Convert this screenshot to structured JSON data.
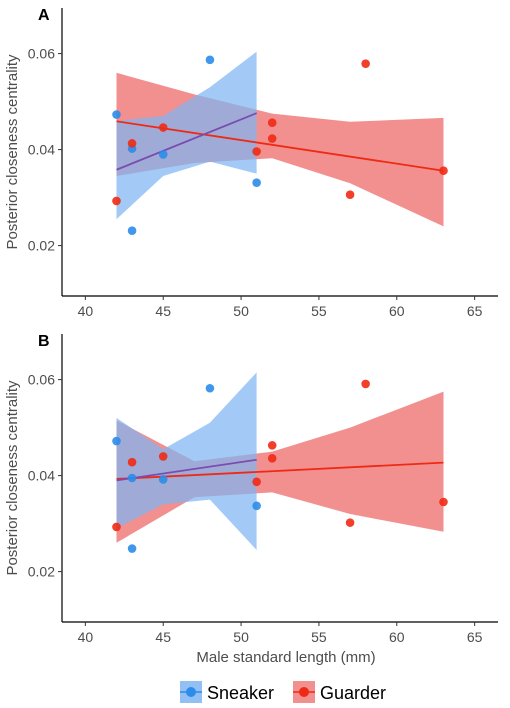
{
  "colors": {
    "sneaker": "#2b8ce9",
    "guarder": "#ef2a14",
    "sneaker_ribbon": "#7fb4f2",
    "guarder_ribbon": "#f07d7d",
    "overlap_line": "#7a4cb0"
  },
  "legend": {
    "items": [
      {
        "key": "sneaker",
        "label": "Sneaker"
      },
      {
        "key": "guarder",
        "label": "Guarder"
      }
    ],
    "placement": "bottom"
  },
  "shared": {
    "xlabel": "Male standard length (mm)",
    "ylabel": "Posterior closeness centrality"
  },
  "chart_data": [
    {
      "panel": "A",
      "type": "scatter",
      "xlim": [
        38.5,
        66.5
      ],
      "ylim": [
        0.0095,
        0.0695
      ],
      "xticks": [
        40,
        45,
        50,
        55,
        60,
        65
      ],
      "yticks": [
        0.02,
        0.04,
        0.06
      ],
      "ytick_labels": [
        "0.02",
        "0.04",
        "0.06"
      ],
      "series": [
        {
          "name": "Sneaker",
          "x": [
            42,
            43,
            43,
            45,
            48,
            51
          ],
          "y": [
            0.0473,
            0.0402,
            0.0231,
            0.039,
            0.0587,
            0.0331
          ],
          "fit": {
            "x": [
              42,
              51
            ],
            "y": [
              0.0358,
              0.0476
            ]
          },
          "ribbon": {
            "x": [
              42,
              45,
              48,
              51
            ],
            "lower": [
              0.0255,
              0.0345,
              0.0375,
              0.035
            ],
            "upper": [
              0.046,
              0.047,
              0.053,
              0.0604
            ]
          }
        },
        {
          "name": "Guarder",
          "x": [
            42,
            43,
            45,
            51,
            52,
            52,
            57,
            58,
            63
          ],
          "y": [
            0.0293,
            0.0413,
            0.0446,
            0.0396,
            0.0456,
            0.0423,
            0.0306,
            0.0579,
            0.0356
          ],
          "fit": {
            "x": [
              42,
              63
            ],
            "y": [
              0.0459,
              0.0356
            ]
          },
          "ribbon": {
            "x": [
              42,
              47,
              52,
              57,
              63
            ],
            "lower": [
              0.0345,
              0.0372,
              0.0382,
              0.033,
              0.024
            ],
            "upper": [
              0.056,
              0.0515,
              0.0475,
              0.0458,
              0.0466
            ]
          }
        }
      ]
    },
    {
      "panel": "B",
      "type": "scatter",
      "xlim": [
        38.5,
        66.5
      ],
      "ylim": [
        0.0095,
        0.0695
      ],
      "xticks": [
        40,
        45,
        50,
        55,
        60,
        65
      ],
      "yticks": [
        0.02,
        0.04,
        0.06
      ],
      "ytick_labels": [
        "0.02",
        "0.04",
        "0.06"
      ],
      "series": [
        {
          "name": "Sneaker",
          "x": [
            42,
            43,
            43,
            45,
            48,
            51
          ],
          "y": [
            0.0472,
            0.0395,
            0.0248,
            0.0392,
            0.0582,
            0.0337
          ],
          "fit": {
            "x": [
              42,
              51
            ],
            "y": [
              0.039,
              0.0433
            ]
          },
          "ribbon": {
            "x": [
              42,
              45,
              48,
              51
            ],
            "lower": [
              0.029,
              0.034,
              0.035,
              0.0245
            ],
            "upper": [
              0.052,
              0.0455,
              0.051,
              0.0615
            ]
          }
        },
        {
          "name": "Guarder",
          "x": [
            42,
            43,
            45,
            51,
            52,
            52,
            57,
            58,
            63
          ],
          "y": [
            0.0293,
            0.0428,
            0.044,
            0.0387,
            0.0463,
            0.0436,
            0.0302,
            0.0591,
            0.0345
          ],
          "fit": {
            "x": [
              42,
              63
            ],
            "y": [
              0.0393,
              0.0427
            ]
          },
          "ribbon": {
            "x": [
              42,
              47,
              52,
              57,
              63
            ],
            "lower": [
              0.026,
              0.0355,
              0.0365,
              0.032,
              0.0283
            ],
            "upper": [
              0.0515,
              0.043,
              0.045,
              0.05,
              0.0575
            ]
          }
        }
      ]
    }
  ]
}
